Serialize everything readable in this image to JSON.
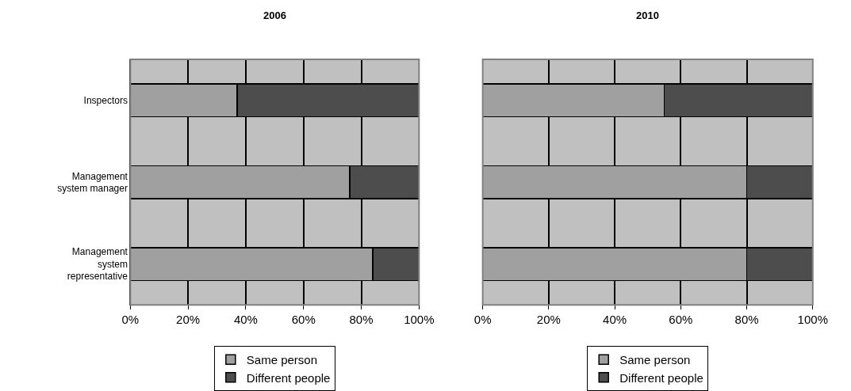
{
  "chart_data": [
    {
      "type": "bar",
      "title": "2006",
      "orientation": "horizontal",
      "stacked": true,
      "categories": [
        "Inspectors",
        "Management\nsystem manager",
        "Management\nsystem\nrepresentative"
      ],
      "series": [
        {
          "name": "Same person",
          "color": "#a0a0a0",
          "values": [
            37,
            76,
            84
          ]
        },
        {
          "name": "Different people",
          "color": "#4d4d4d",
          "values": [
            63,
            24,
            16
          ]
        }
      ],
      "xlim": [
        0,
        100
      ],
      "xticks": [
        {
          "value": 0,
          "label": "0%"
        },
        {
          "value": 20,
          "label": "20%"
        },
        {
          "value": 40,
          "label": "40%"
        },
        {
          "value": 60,
          "label": "60%"
        },
        {
          "value": 80,
          "label": "80%"
        },
        {
          "value": 100,
          "label": "100%"
        }
      ],
      "grid": "x",
      "legend": "bottom"
    },
    {
      "type": "bar",
      "title": "2010",
      "orientation": "horizontal",
      "stacked": true,
      "categories": [
        null,
        null,
        null
      ],
      "series": [
        {
          "name": "Same person",
          "color": "#a0a0a0",
          "values": [
            55,
            80,
            80
          ]
        },
        {
          "name": "Different people",
          "color": "#4d4d4d",
          "values": [
            45,
            20,
            20
          ]
        }
      ],
      "xlim": [
        0,
        100
      ],
      "xticks": [
        {
          "value": 0,
          "label": "0%"
        },
        {
          "value": 20,
          "label": "20%"
        },
        {
          "value": 40,
          "label": "40%"
        },
        {
          "value": 60,
          "label": "60%"
        },
        {
          "value": 80,
          "label": "80%"
        },
        {
          "value": 100,
          "label": "100%"
        }
      ],
      "grid": "x",
      "legend": "bottom",
      "tick_labels": "x"
    }
  ]
}
